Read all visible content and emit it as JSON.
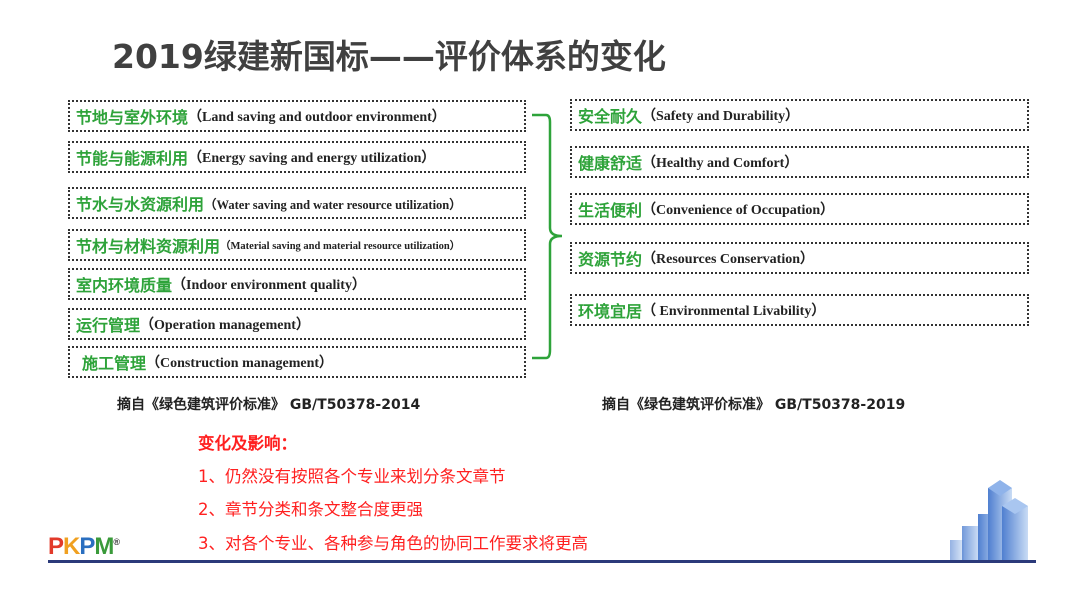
{
  "title": "2019绿建新国标——评价体系的变化",
  "left_items": [
    {
      "cn": "节地与室外环境",
      "en": "（Land saving and outdoor environment）"
    },
    {
      "cn": "节能与能源利用",
      "en": "（Energy saving and energy utilization）"
    },
    {
      "cn": "节水与水资源利用",
      "en": "（Water saving and water resource utilization）"
    },
    {
      "cn": "节材与材料资源利用",
      "en": "（Material saving and material resource utilization）"
    },
    {
      "cn": "室内环境质量",
      "en": "（Indoor environment quality）"
    },
    {
      "cn": "运行管理",
      "en": "（Operation management）"
    },
    {
      "cn": "施工管理",
      "en": "（Construction management）"
    }
  ],
  "right_items": [
    {
      "cn": "安全耐久",
      "en": "（Safety and Durability）"
    },
    {
      "cn": "健康舒适",
      "en": "（Healthy and Comfort）"
    },
    {
      "cn": "生活便利",
      "en": "（Convenience of Occupation）"
    },
    {
      "cn": "资源节约",
      "en": "（Resources Conservation）"
    },
    {
      "cn": "环境宜居",
      "en": "（ Environmental Livability）"
    }
  ],
  "captions": {
    "left": "摘自《绿色建筑评价标准》 GB/T50378-2014",
    "right": "摘自《绿色建筑评价标准》 GB/T50378-2019"
  },
  "changes": {
    "heading": "变化及影响：",
    "items": [
      "1、仍然没有按照各个专业来划分条文章节",
      "2、章节分类和条文整合度更强",
      "3、对各个专业、各种参与角色的协同工作要求将更高"
    ]
  },
  "logo": {
    "text": "PKPM",
    "mark": "®"
  },
  "colors": {
    "green": "#2ea33a",
    "red": "#ff2020",
    "title": "#404040",
    "footer": "#2b3a7a"
  }
}
